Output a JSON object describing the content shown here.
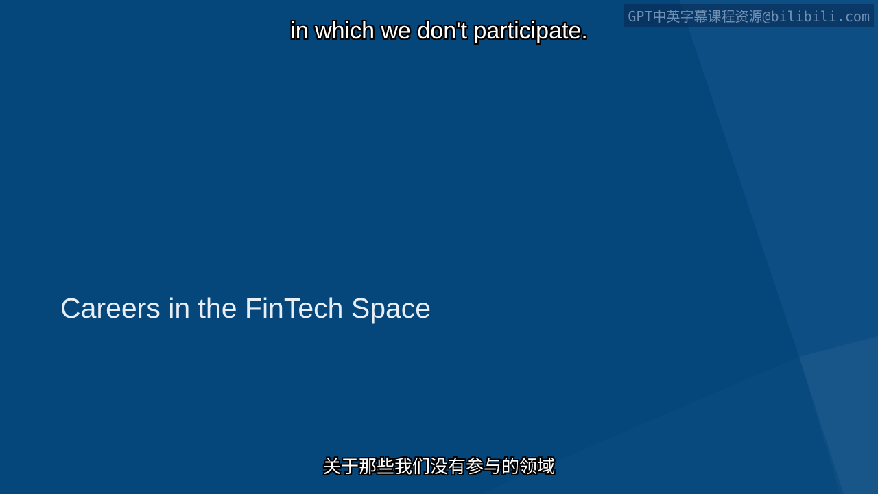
{
  "slide": {
    "title": "Careers in the FinTech Space",
    "background_color": "#05467b"
  },
  "subtitles": {
    "english": "in which we don't participate.",
    "chinese": "关于那些我们没有参与的领域"
  },
  "watermark": {
    "text": "GPT中英字幕课程资源@bilibili.com"
  }
}
